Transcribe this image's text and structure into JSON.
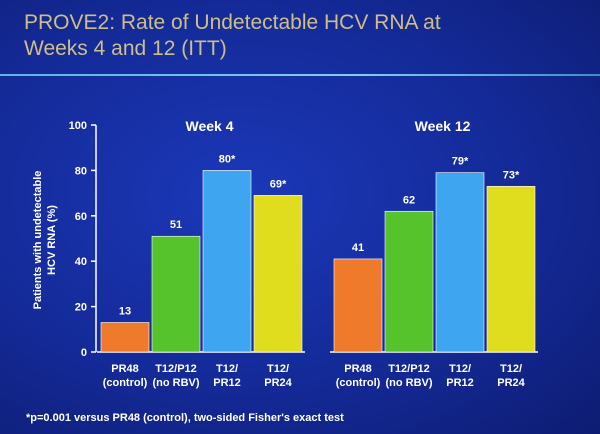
{
  "slide": {
    "title_line1": "PROVE2: Rate of Undetectable HCV RNA at",
    "title_line2": "Weeks 4 and 12 (ITT)",
    "footnote": "*p=0.001 versus PR48 (control), two-sided Fisher's exact test"
  },
  "chart_data": {
    "type": "bar",
    "ylabel_line1": "Patients with undetectable",
    "ylabel_line2": "HCV RNA (%)",
    "ylim": [
      0,
      100
    ],
    "yticks": [
      0,
      20,
      40,
      60,
      80,
      100
    ],
    "grid": false,
    "groups": [
      {
        "name": "Week 4",
        "bars": [
          {
            "label_line1": "PR48",
            "label_line2": "(control)",
            "value": 13,
            "value_label": "13",
            "color": "#f07a2c"
          },
          {
            "label_line1": "T12/P12",
            "label_line2": "(no RBV)",
            "value": 51,
            "value_label": "51",
            "color": "#56c22c"
          },
          {
            "label_line1": "T12/",
            "label_line2": "PR12",
            "value": 80,
            "value_label": "80*",
            "color": "#3ea6f0"
          },
          {
            "label_line1": "T12/",
            "label_line2": "PR24",
            "value": 69,
            "value_label": "69*",
            "color": "#e0dc1e"
          }
        ]
      },
      {
        "name": "Week 12",
        "bars": [
          {
            "label_line1": "PR48",
            "label_line2": "(control)",
            "value": 41,
            "value_label": "41",
            "color": "#f07a2c"
          },
          {
            "label_line1": "T12/P12",
            "label_line2": "(no RBV)",
            "value": 62,
            "value_label": "62",
            "color": "#56c22c"
          },
          {
            "label_line1": "T12/",
            "label_line2": "PR12",
            "value": 79,
            "value_label": "79*",
            "color": "#3ea6f0"
          },
          {
            "label_line1": "T12/",
            "label_line2": "PR24",
            "value": 73,
            "value_label": "73*",
            "color": "#e0dc1e"
          }
        ]
      }
    ]
  }
}
